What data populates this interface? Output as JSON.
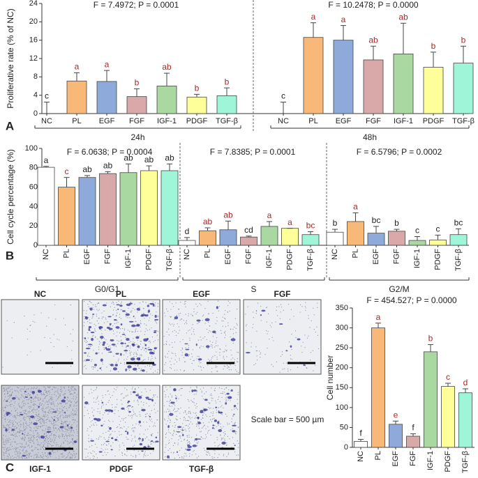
{
  "chart_data": [
    {
      "type": "bar",
      "panel": "A",
      "ylabel": "Proliferative rate (% of NC)",
      "ylim": [
        0,
        24
      ],
      "yticks": [
        0,
        4,
        8,
        12,
        16,
        20,
        24
      ],
      "colors": [
        "#ffffff",
        "#f8b878",
        "#8eaadb",
        "#d9a9a9",
        "#a9d8a0",
        "#ffff99",
        "#9ff5d8"
      ],
      "groups": [
        {
          "name": "24h",
          "stat": "F = 7.4972; P = 0.0001",
          "categories": [
            "NC",
            "PL",
            "EGF",
            "FGF",
            "IGF-1",
            "PDGF",
            "TGF-β"
          ],
          "values": [
            0,
            7.1,
            7.0,
            3.7,
            6.0,
            3.6,
            3.9
          ],
          "errors": [
            2.5,
            1.8,
            2.4,
            1.7,
            2.8,
            0.6,
            1.7
          ],
          "letters": [
            "c",
            "a",
            "a",
            "b",
            "ab",
            "b",
            "b"
          ],
          "letter_colors": [
            "#222222",
            "#a52a2a",
            "#a52a2a",
            "#a52a2a",
            "#a52a2a",
            "#a52a2a",
            "#a52a2a"
          ]
        },
        {
          "name": "48h",
          "stat": "F = 10.2478; P = 0.0000",
          "categories": [
            "NC",
            "PL",
            "EGF",
            "FGF",
            "IGF-1",
            "PDGF",
            "TGF-β"
          ],
          "values": [
            0,
            16.6,
            16.0,
            11.7,
            13.0,
            10.1,
            11.0
          ],
          "errors": [
            2.5,
            3.2,
            3.2,
            3.0,
            6.7,
            3.3,
            3.7
          ],
          "letters": [
            "c",
            "a",
            "a",
            "ab",
            "ab",
            "b",
            "b"
          ],
          "letter_colors": [
            "#222222",
            "#a52a2a",
            "#a52a2a",
            "#a52a2a",
            "#a52a2a",
            "#a52a2a",
            "#a52a2a"
          ]
        }
      ]
    },
    {
      "type": "bar",
      "panel": "B",
      "ylabel": "Cell cycle percentage (%)",
      "ylim": [
        0,
        100
      ],
      "yticks": [
        0,
        20,
        40,
        60,
        80,
        100
      ],
      "colors": [
        "#ffffff",
        "#f8b878",
        "#8eaadb",
        "#d9a9a9",
        "#a9d8a0",
        "#ffff99",
        "#9ff5d8"
      ],
      "groups": [
        {
          "name": "G0/G1",
          "stat": "F = 6.0638; P = 0.0004",
          "categories": [
            "NC",
            "PL",
            "EGF",
            "FGF",
            "IGF-1",
            "PDGF",
            "TGF-β"
          ],
          "values": [
            80.5,
            60,
            70,
            74,
            75,
            77,
            77
          ],
          "errors": [
            1,
            10,
            2,
            2,
            9,
            5,
            7
          ],
          "letters": [
            "a",
            "c",
            "ab",
            "ab",
            "ab",
            "ab",
            "ab"
          ],
          "letter_colors": [
            "#222222",
            "#a52a2a",
            "#222222",
            "#222222",
            "#222222",
            "#222222",
            "#222222"
          ]
        },
        {
          "name": "S",
          "stat": "F = 7.8385; P = 0.0001",
          "categories": [
            "NC",
            "PL",
            "EGF",
            "FGF",
            "IGF-1",
            "PDGF",
            "TGF-β"
          ],
          "values": [
            5,
            15,
            16,
            8.5,
            19.5,
            17.5,
            11
          ],
          "errors": [
            3,
            3,
            9,
            1,
            5,
            0,
            3
          ],
          "letters": [
            "d",
            "ab",
            "ab",
            "cd",
            "a",
            "a",
            "bc"
          ],
          "letter_colors": [
            "#222222",
            "#a52a2a",
            "#a52a2a",
            "#222222",
            "#a52a2a",
            "#a52a2a",
            "#a52a2a"
          ]
        },
        {
          "name": "G2/M",
          "stat": "F = 6.5796; P = 0.0002",
          "categories": [
            "NC",
            "PL",
            "EGF",
            "FGF",
            "IGF-1",
            "PDGF",
            "TGF-β"
          ],
          "values": [
            13.5,
            24.5,
            12.5,
            14.5,
            5,
            5.5,
            11
          ],
          "errors": [
            3,
            9,
            7,
            2,
            4,
            5,
            6
          ],
          "letters": [
            "b",
            "a",
            "bc",
            "b",
            "c",
            "c",
            "bc"
          ],
          "letter_colors": [
            "#222222",
            "#a52a2a",
            "#222222",
            "#222222",
            "#222222",
            "#222222",
            "#222222"
          ]
        }
      ]
    },
    {
      "type": "bar",
      "ylabel": "Cell number",
      "ylim": [
        0,
        350
      ],
      "yticks": [
        0,
        50,
        100,
        150,
        200,
        250,
        300,
        350
      ],
      "colors": [
        "#ffffff",
        "#f8b878",
        "#8eaadb",
        "#d9a9a9",
        "#a9d8a0",
        "#ffff99",
        "#9ff5d8"
      ],
      "groups": [
        {
          "stat": "F = 454.527; P = 0.0000",
          "categories": [
            "NC",
            "PL",
            "EGF",
            "FGF",
            "IGF-1",
            "PDGF",
            "TGF-β"
          ],
          "values": [
            15,
            300,
            58,
            28,
            240,
            153,
            137
          ],
          "errors": [
            5,
            12,
            8,
            6,
            18,
            8,
            10
          ],
          "letters": [
            "f",
            "a",
            "e",
            "f",
            "b",
            "c",
            "d"
          ],
          "letter_colors": [
            "#222222",
            "#a52a2a",
            "#a52a2a",
            "#222222",
            "#a52a2a",
            "#a52a2a",
            "#a52a2a"
          ]
        }
      ]
    }
  ],
  "images": {
    "panel": "C",
    "labels": [
      "NC",
      "PL",
      "EGF",
      "FGF",
      "IGF-1",
      "PDGF",
      "TGF-β"
    ],
    "scale_note": "Scale bar = 500 µm"
  }
}
